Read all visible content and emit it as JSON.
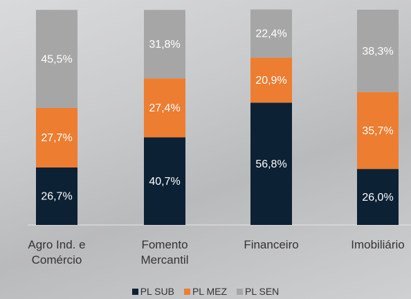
{
  "chart_data": {
    "type": "stacked_bar",
    "categories": [
      "Agro Ind. e Comércio",
      "Fomento Mercantil",
      "Financeiro",
      "Imobiliário"
    ],
    "series": [
      {
        "name": "PL SUB",
        "color": "#0d2135",
        "values": [
          26.7,
          40.7,
          56.8,
          26.0
        ],
        "value_labels": [
          "26,7%",
          "40,7%",
          "56,8%",
          "26,0%"
        ]
      },
      {
        "name": "PL MEZ",
        "color": "#ed7d31",
        "values": [
          27.7,
          27.4,
          20.9,
          35.7
        ],
        "value_labels": [
          "27,7%",
          "27,4%",
          "20,9%",
          "35,7%"
        ]
      },
      {
        "name": "PL SEN",
        "color": "#a6a6a6",
        "values": [
          45.5,
          31.8,
          22.4,
          38.3
        ],
        "value_labels": [
          "45,5%",
          "31,8%",
          "22,4%",
          "38,3%"
        ]
      }
    ],
    "ylim": [
      0,
      100
    ],
    "legend": "bottom"
  }
}
